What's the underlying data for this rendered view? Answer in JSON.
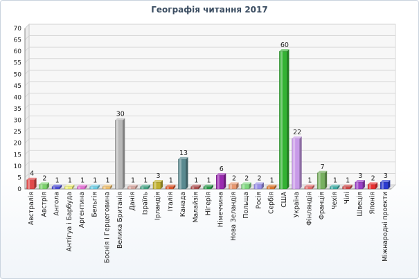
{
  "chart_data": {
    "type": "bar",
    "title": "Географія читання 2017",
    "xlabel": "",
    "ylabel": "",
    "ylim": [
      0,
      70
    ],
    "yticks": [
      0,
      5,
      10,
      15,
      20,
      25,
      30,
      35,
      40,
      45,
      50,
      55,
      60,
      65,
      70
    ],
    "grid": true,
    "legend": "none",
    "categories": [
      "Австралія",
      "Австрія",
      "Ангола",
      "Антігуа і Барбуда",
      "Аргентина",
      "Бельгія",
      "Боснія і Герцеговина",
      "Велика Британія",
      "Данія",
      "Ізраїль",
      "Ірландія",
      "Італія",
      "Канада",
      "Малайзія",
      "Нігерія",
      "Німеччина",
      "Нова Зеландія",
      "Польща",
      "Росія",
      "Сербія",
      "США",
      "Україна",
      "Фінляндія",
      "Франція",
      "Чехія",
      "Чілі",
      "Швеція",
      "Японія",
      "Міжнародні проекти"
    ],
    "values": [
      4,
      2,
      1,
      1,
      1,
      1,
      1,
      30,
      1,
      1,
      3,
      1,
      13,
      1,
      1,
      6,
      2,
      2,
      2,
      1,
      60,
      22,
      1,
      7,
      1,
      1,
      3,
      2,
      3
    ],
    "colors": [
      "#e04a4a",
      "#7bd36b",
      "#4d4dd8",
      "#eef07a",
      "#e86fd8",
      "#6ed0e8",
      "#f0c070",
      "#b8b8b8",
      "#d8a8a0",
      "#46a888",
      "#c0b030",
      "#e05a30",
      "#5a8a90",
      "#b05050",
      "#2a9a4a",
      "#9a2ab0",
      "#e89870",
      "#80d880",
      "#9a90e8",
      "#e07a30",
      "#33b233",
      "#c89ae8",
      "#e87070",
      "#78b060",
      "#40b0a8",
      "#d04848",
      "#9a40c8",
      "#e83030",
      "#2a3ad0"
    ]
  }
}
